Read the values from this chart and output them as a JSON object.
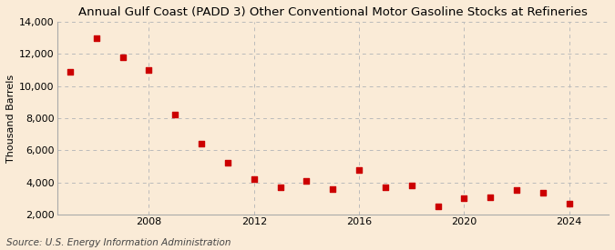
{
  "title": "Annual Gulf Coast (PADD 3) Other Conventional Motor Gasoline Stocks at Refineries",
  "ylabel": "Thousand Barrels",
  "source": "Source: U.S. Energy Information Administration",
  "background_color": "#faebd7",
  "plot_background_color": "#faebd7",
  "marker_color": "#cc0000",
  "grid_color": "#bbbbbb",
  "years": [
    2005,
    2006,
    2007,
    2008,
    2009,
    2010,
    2011,
    2012,
    2013,
    2014,
    2015,
    2016,
    2017,
    2018,
    2019,
    2020,
    2021,
    2022,
    2023,
    2024
  ],
  "values": [
    10900,
    13000,
    11800,
    11000,
    8200,
    6400,
    5200,
    4200,
    3700,
    4100,
    3600,
    4800,
    3700,
    3800,
    2500,
    3000,
    3100,
    3550,
    3350,
    2700
  ],
  "xlim": [
    2004.5,
    2025.5
  ],
  "ylim": [
    2000,
    14000
  ],
  "yticks": [
    2000,
    4000,
    6000,
    8000,
    10000,
    12000,
    14000
  ],
  "xticks": [
    2008,
    2012,
    2016,
    2020,
    2024
  ],
  "title_fontsize": 9.5,
  "axis_fontsize": 8,
  "source_fontsize": 7.5
}
